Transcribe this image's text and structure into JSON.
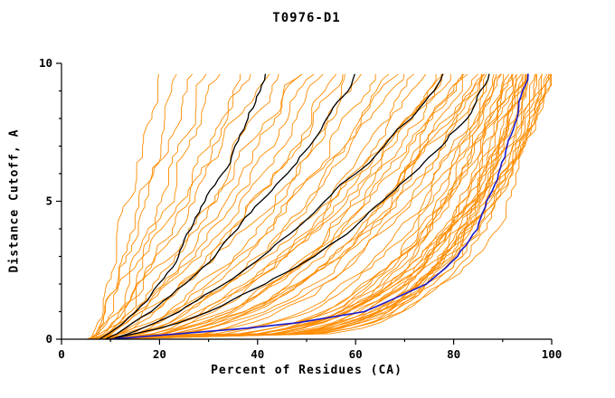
{
  "chart_data": {
    "type": "line",
    "title": "T0976-D1",
    "xlabel": "Percent of Residues (CA)",
    "ylabel": "Distance Cutoff, A",
    "xlim": [
      0,
      100
    ],
    "ylim": [
      0,
      10
    ],
    "x_major_ticks": [
      0,
      20,
      40,
      60,
      80,
      100
    ],
    "x_minor_step": 10,
    "y_major_ticks": [
      0,
      5,
      10
    ],
    "y_minor_step": 1,
    "grid": "off",
    "legend": "none",
    "curve_top_cutoff": 9.6,
    "colors": {
      "ensemble": "#ff8c00",
      "highlight": "#1a1acd",
      "reference": "#000000",
      "axis": "#000000",
      "background": "#ffffff"
    },
    "cutoff_samples": [
      0,
      0.5,
      1,
      2,
      3,
      4,
      5,
      6,
      7,
      8,
      9,
      9.6
    ],
    "highlight_series": {
      "name": "best-model-blue",
      "color": "#1a1acd",
      "percents": [
        10,
        45,
        62,
        75,
        81,
        85,
        87,
        89,
        91,
        92.5,
        94,
        95
      ]
    },
    "reference_series": [
      {
        "name": "black-model-1",
        "percents": [
          8,
          12,
          15,
          20,
          24,
          27,
          30,
          33,
          36,
          39,
          41,
          42
        ]
      },
      {
        "name": "black-model-2",
        "percents": [
          9,
          14,
          18,
          25,
          31,
          36,
          41,
          46,
          50,
          54,
          58,
          60
        ]
      },
      {
        "name": "black-model-3",
        "percents": [
          10,
          18,
          24,
          33,
          41,
          48,
          54,
          60,
          66,
          71,
          75,
          77
        ]
      },
      {
        "name": "black-model-4",
        "percents": [
          10,
          22,
          30,
          42,
          52,
          60,
          66,
          72,
          77,
          82,
          85,
          87
        ]
      }
    ],
    "ensemble": {
      "name": "all-models-orange",
      "color": "#ff8c00",
      "count": 70,
      "jitter_amplitude": 2.0,
      "jitter_seed": 11,
      "curve_params_x0_xtop_p": [
        [
          6,
          20,
          0.95
        ],
        [
          7,
          24,
          0.9
        ],
        [
          5,
          27,
          0.92
        ],
        [
          8,
          30,
          0.85
        ],
        [
          6,
          33,
          0.9
        ],
        [
          7,
          36,
          0.8
        ],
        [
          9,
          39,
          0.85
        ],
        [
          6,
          42,
          0.8
        ],
        [
          8,
          45,
          0.75
        ],
        [
          7,
          48,
          0.8
        ],
        [
          6,
          50,
          0.7
        ],
        [
          9,
          52,
          0.75
        ],
        [
          7,
          54,
          0.7
        ],
        [
          8,
          56,
          0.65
        ],
        [
          6,
          58,
          0.7
        ],
        [
          9,
          60,
          0.6
        ],
        [
          7,
          62,
          0.65
        ],
        [
          8,
          64,
          0.6
        ],
        [
          6,
          66,
          0.6
        ],
        [
          9,
          68,
          0.55
        ],
        [
          7,
          70,
          0.55
        ],
        [
          8,
          72,
          0.5
        ],
        [
          6,
          74,
          0.55
        ],
        [
          9,
          75,
          0.5
        ],
        [
          7,
          76,
          0.5
        ],
        [
          8,
          77,
          0.45
        ],
        [
          6,
          78,
          0.5
        ],
        [
          9,
          79,
          0.45
        ],
        [
          7,
          80,
          0.45
        ],
        [
          8,
          81,
          0.4
        ],
        [
          6,
          82,
          0.45
        ],
        [
          9,
          83,
          0.4
        ],
        [
          7,
          84,
          0.4
        ],
        [
          8,
          85,
          0.38
        ],
        [
          6,
          86,
          0.42
        ],
        [
          9,
          86,
          0.36
        ],
        [
          7,
          87,
          0.4
        ],
        [
          8,
          87,
          0.34
        ],
        [
          6,
          88,
          0.3
        ],
        [
          9,
          88,
          0.26
        ],
        [
          7,
          89,
          0.28
        ],
        [
          8,
          89,
          0.24
        ],
        [
          6,
          90,
          0.26
        ],
        [
          9,
          90,
          0.22
        ],
        [
          7,
          91,
          0.26
        ],
        [
          8,
          91,
          0.22
        ],
        [
          6,
          92,
          0.24
        ],
        [
          9,
          92,
          0.2
        ],
        [
          7,
          93,
          0.24
        ],
        [
          8,
          93,
          0.2
        ],
        [
          6,
          94,
          0.22
        ],
        [
          9,
          94,
          0.19
        ],
        [
          7,
          94,
          0.25
        ],
        [
          8,
          95,
          0.2
        ],
        [
          6,
          95,
          0.23
        ],
        [
          9,
          95,
          0.18
        ],
        [
          7,
          96,
          0.22
        ],
        [
          8,
          96,
          0.19
        ],
        [
          6,
          96,
          0.25
        ],
        [
          9,
          97,
          0.18
        ],
        [
          7,
          97,
          0.22
        ],
        [
          8,
          97,
          0.2
        ],
        [
          6,
          98,
          0.19
        ],
        [
          9,
          98,
          0.22
        ],
        [
          7,
          98,
          0.18
        ],
        [
          8,
          99,
          0.2
        ],
        [
          6,
          99,
          0.18
        ],
        [
          9,
          100,
          0.19
        ],
        [
          7,
          100,
          0.22
        ],
        [
          8,
          100,
          0.18
        ]
      ]
    }
  }
}
